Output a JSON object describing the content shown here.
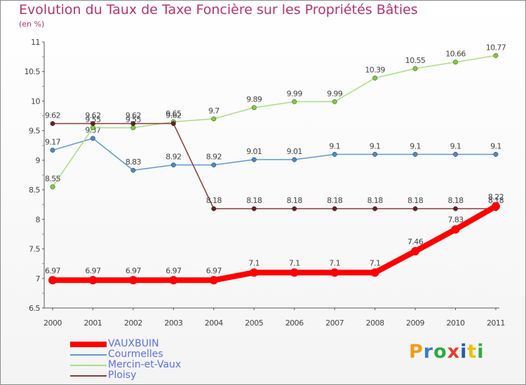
{
  "chart_data": {
    "type": "line",
    "title": "Evolution du Taux de Taxe Foncière sur les Propriétés Bâties",
    "ylabel": "(en %)",
    "xlabel": "",
    "ylim": [
      6.5,
      11
    ],
    "yticks": [
      "6.5",
      "7",
      "7.5",
      "8",
      "8.5",
      "9",
      "9.5",
      "10",
      "10.5",
      "11"
    ],
    "categories": [
      "2000",
      "2001",
      "2002",
      "2003",
      "2004",
      "2005",
      "2006",
      "2007",
      "2008",
      "2009",
      "2010",
      "2011"
    ],
    "series": [
      {
        "name": "Courmelles",
        "color": "#5b9bd5",
        "dot": "#4a8ac4",
        "values": [
          9.17,
          9.37,
          8.83,
          8.92,
          8.92,
          9.01,
          9.01,
          9.1,
          9.1,
          9.1,
          9.1,
          9.1
        ],
        "labels": [
          "9.17",
          "9.37",
          "8.83",
          "8.92",
          "8.92",
          "9.01",
          "9.01",
          "9.1",
          "9.1",
          "9.1",
          "9.1",
          "9.1"
        ]
      },
      {
        "name": "Mercin-et-Vaux",
        "color": "#a6e07f",
        "dot": "#7ccc3c",
        "values": [
          8.55,
          9.55,
          9.55,
          9.65,
          9.7,
          9.89,
          9.99,
          9.99,
          10.39,
          10.55,
          10.66,
          10.77
        ],
        "labels": [
          "8.55",
          "9.55",
          "9.55",
          "9.65",
          "9.7",
          "9.89",
          "9.99",
          "9.99",
          "10.39",
          "10.55",
          "10.66",
          "10.77"
        ]
      },
      {
        "name": "Ploisy",
        "color": "#8b3a3a",
        "dot": "#6a2020",
        "values": [
          9.62,
          9.62,
          9.62,
          9.62,
          8.18,
          8.18,
          8.18,
          8.18,
          8.18,
          8.18,
          8.18,
          8.18
        ],
        "labels": [
          "9.62",
          "9.62",
          "9.62",
          "9.62",
          "8.18",
          "8.18",
          "8.18",
          "8.18",
          "8.18",
          "8.18",
          "8.18",
          "8.18"
        ]
      },
      {
        "name": "VAUXBUIN",
        "color": "#ff0000",
        "dot": "#ff0000",
        "values": [
          6.97,
          6.97,
          6.97,
          6.97,
          6.97,
          7.1,
          7.1,
          7.1,
          7.1,
          7.46,
          7.83,
          8.22
        ],
        "labels": [
          "6.97",
          "6.97",
          "6.97",
          "6.97",
          "6.97",
          "7.1",
          "7.1",
          "7.1",
          "7.1",
          "7.46",
          "7.83",
          "8.22"
        ]
      }
    ],
    "legend": [
      "VAUXBUIN",
      "Courmelles",
      "Mercin-et-Vaux",
      "Ploisy"
    ],
    "legend_position": "bottom-left"
  },
  "logo": {
    "letters": [
      "P",
      "r",
      "o",
      "x",
      "i",
      "t",
      "i"
    ],
    "colors": [
      "#f39c12",
      "#3a7bd5",
      "#2eaa44",
      "#e73c2c",
      "#1a5bbd",
      "#f0c000",
      "#2eaa44"
    ]
  }
}
